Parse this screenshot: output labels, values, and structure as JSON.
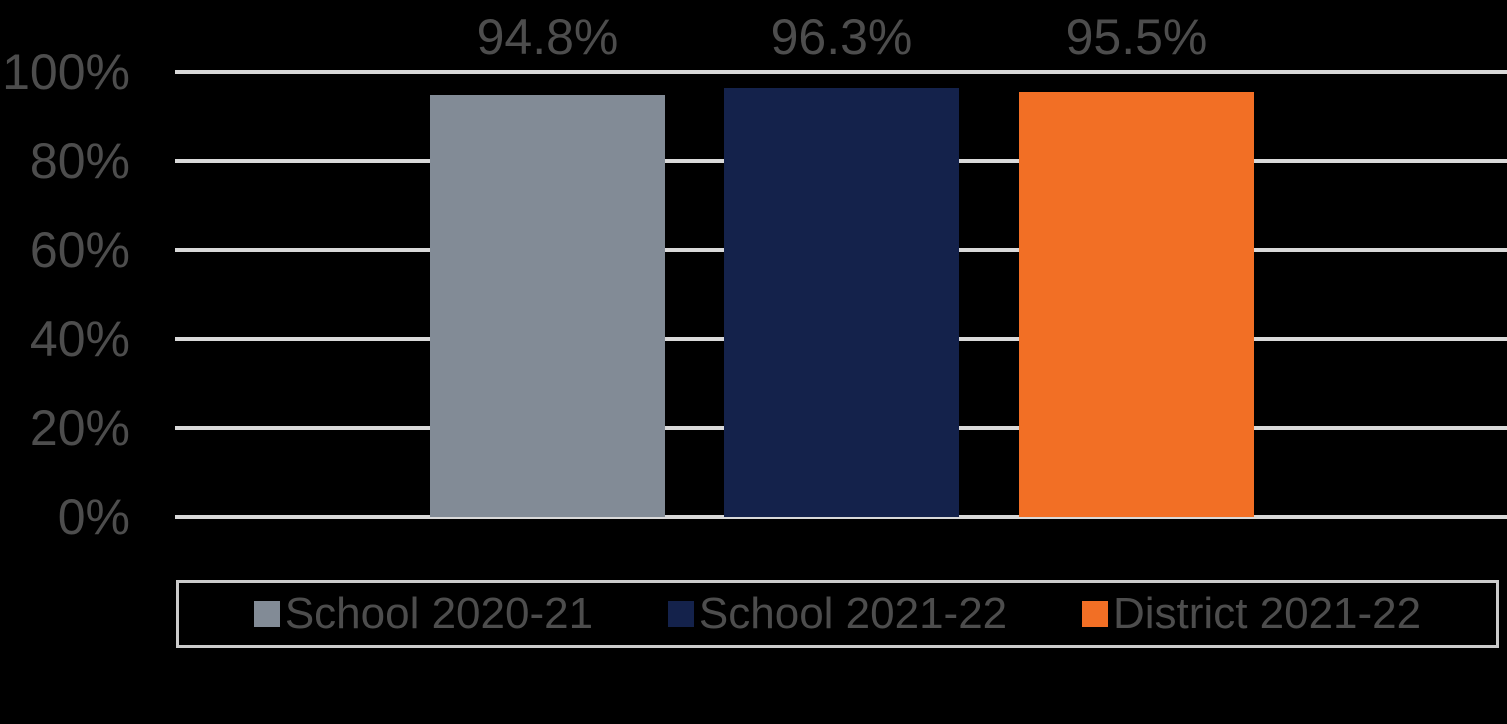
{
  "chart_data": {
    "type": "bar",
    "title": "",
    "xlabel": "",
    "ylabel": "",
    "categories": [
      "School 2020-21",
      "School 2021-22",
      "District 2021-22"
    ],
    "values": [
      94.8,
      96.3,
      95.5
    ],
    "value_labels": [
      "94.8%",
      "96.3%",
      "95.5%"
    ],
    "bar_colors": [
      "#828B96",
      "#14224B",
      "#F26F25"
    ],
    "ylim": [
      0,
      100
    ],
    "y_ticks": [
      "100%",
      "80%",
      "60%",
      "40%",
      "20%",
      "0%"
    ],
    "y_gridlines_at": [
      100,
      80,
      60,
      40,
      20,
      0
    ],
    "grid": true,
    "legend_position": "bottom"
  },
  "legend": {
    "items": [
      {
        "label": "School 2020-21",
        "color": "#828B96"
      },
      {
        "label": "School 2021-22",
        "color": "#14224B"
      },
      {
        "label": "District 2021-22",
        "color": "#F26F25"
      }
    ]
  },
  "colors": {
    "background": "#000000",
    "gridline": "#D9D9D9",
    "text": "#4D4D4D",
    "legend_border": "#CBCBCB"
  }
}
